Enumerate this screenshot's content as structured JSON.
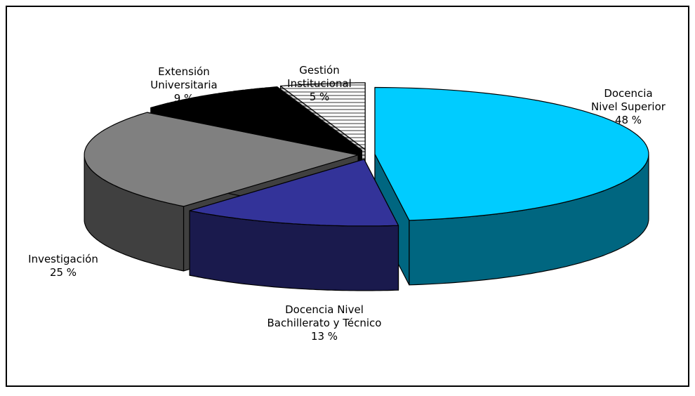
{
  "chart_data": {
    "type": "pie",
    "three_d": true,
    "exploded": true,
    "categories": [
      "Docencia\nNivel Superior",
      "Docencia Nivel\nBachillerato y Técnico",
      "Investigación",
      "Extensión\nUniversitaria",
      "Gestión\nInstitucional"
    ],
    "values": [
      48,
      13,
      25,
      9,
      5
    ],
    "value_labels": [
      "48 %",
      "13 %",
      "25 %",
      "9 %",
      "5 %"
    ],
    "colors": [
      "#00ccff",
      "#333399",
      "#808080",
      "#000000",
      "#ffffff"
    ],
    "patterns": [
      null,
      null,
      null,
      null,
      "horizontal-lines"
    ]
  }
}
